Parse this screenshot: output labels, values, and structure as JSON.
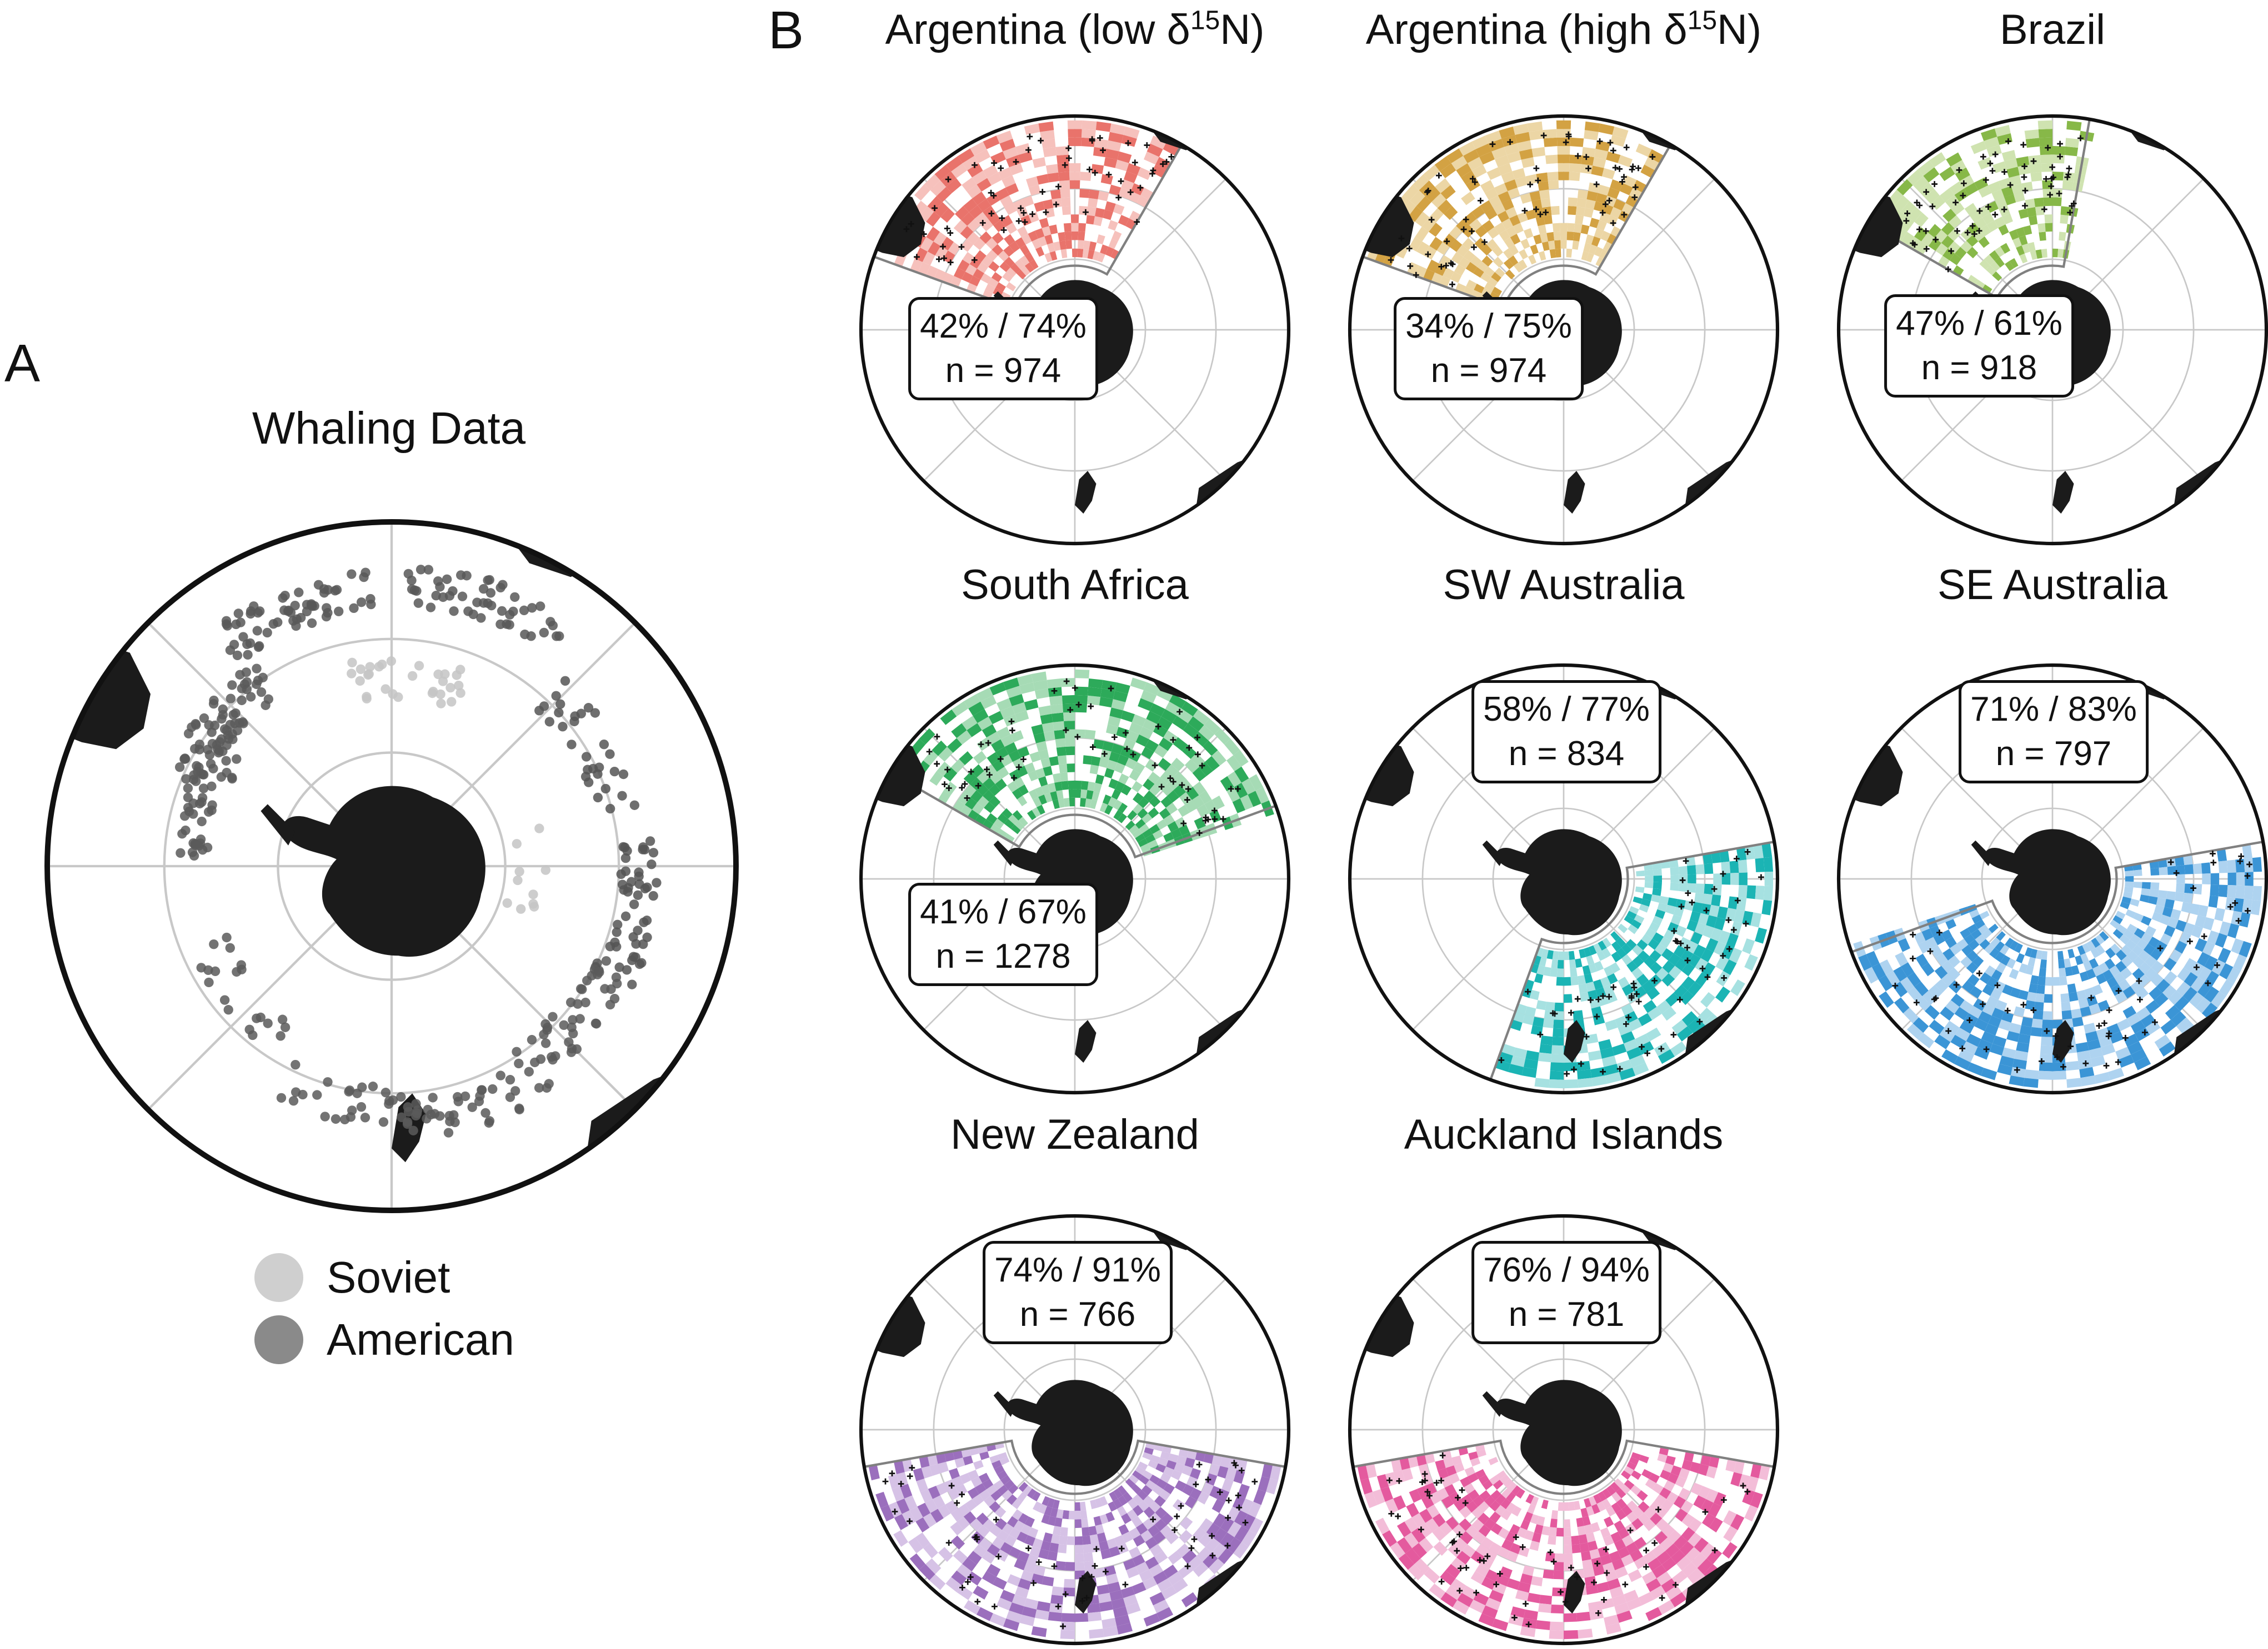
{
  "panel_a": {
    "letter": "A",
    "title": "Whaling Data",
    "legend": [
      {
        "label": "Soviet",
        "color": "#cfcfcf"
      },
      {
        "label": "American",
        "color": "#8a8a8a"
      }
    ]
  },
  "panel_b": {
    "letter": "B",
    "maps": [
      {
        "title": "Argentina (low δ",
        "title_sup": "15",
        "title_tail": "N)",
        "stat": "42% / 74%",
        "n": "n = 974",
        "color": "#e9736b",
        "light": "#f6c1bc"
      },
      {
        "title": "Argentina (high δ",
        "title_sup": "15",
        "title_tail": "N)",
        "stat": "34% / 75%",
        "n": "n = 974",
        "color": "#d3a243",
        "light": "#ecd6a5"
      },
      {
        "title": "Brazil",
        "title_sup": "",
        "title_tail": "",
        "stat": "47% / 61%",
        "n": "n = 918",
        "color": "#87b848",
        "light": "#cfe3b0"
      },
      {
        "title": "South Africa",
        "title_sup": "",
        "title_tail": "",
        "stat": "41% / 67%",
        "n": "n = 1278",
        "color": "#2daa5a",
        "light": "#a6dbb5"
      },
      {
        "title": "SW Australia",
        "title_sup": "",
        "title_tail": "",
        "stat": "58% / 77%",
        "n": "n = 834",
        "color": "#1bb4b4",
        "light": "#a6e1e1"
      },
      {
        "title": "SE Australia",
        "title_sup": "",
        "title_tail": "",
        "stat": "71% / 83%",
        "n": "n = 797",
        "color": "#3b95d6",
        "light": "#aed3f0"
      },
      {
        "title": "New Zealand",
        "title_sup": "",
        "title_tail": "",
        "stat": "74% / 91%",
        "n": "n = 766",
        "color": "#9b6fbd",
        "light": "#d6c2e6"
      },
      {
        "title": "Auckland Islands",
        "title_sup": "",
        "title_tail": "",
        "stat": "76% / 94%",
        "n": "n = 781",
        "color": "#e45a9e",
        "light": "#f3bdd8"
      }
    ]
  }
}
